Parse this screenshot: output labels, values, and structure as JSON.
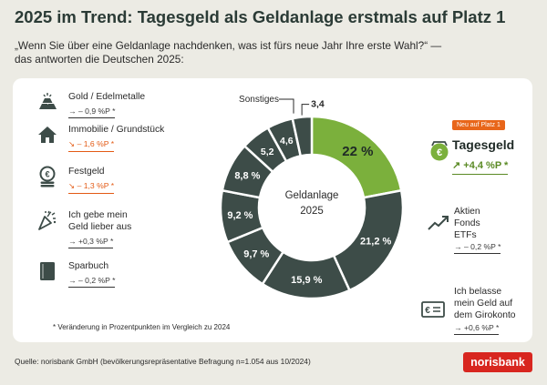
{
  "title": "2025 im Trend: Tagesgeld als Geldanlage erstmals auf Platz 1",
  "subtitle_line1": "„Wenn Sie über eine Geldanlage nachdenken, was ist fürs neue Jahr Ihre erste Wahl?“ —",
  "subtitle_line2": "das antworten die Deutschen 2025:",
  "center_label_line1": "Geldanlage",
  "center_label_line2": "2025",
  "colors": {
    "highlight": "#7bb03c",
    "slice": "#3d4c48",
    "negative": "#e35a14",
    "positive": "#5a8a24",
    "brand": "#d8261f"
  },
  "chart_data": {
    "type": "pie",
    "slices": [
      {
        "label": "Tagesgeld",
        "value": 22,
        "value_label": "22 %",
        "change": "↗ +4,4 %P *",
        "highlight": true
      },
      {
        "label": "Aktien Fonds ETFs",
        "value": 21.2,
        "value_label": "21,2 %",
        "change": "→ – 0,2 %P *"
      },
      {
        "label": "Ich belasse mein Geld auf dem Girokonto",
        "value": 15.9,
        "value_label": "15,9 %",
        "change": "→ +0,6 %P *"
      },
      {
        "label": "Sparbuch",
        "value": 9.7,
        "value_label": "9,7 %",
        "change": "→ – 0,2 %P *"
      },
      {
        "label": "Ich gebe mein Geld lieber aus",
        "value": 9.2,
        "value_label": "9,2 %",
        "change": "→ +0,3 %P *"
      },
      {
        "label": "Festgeld",
        "value": 8.8,
        "value_label": "8,8 %",
        "change": "↘ – 1,3 %P *"
      },
      {
        "label": "Immobilie / Grundstück",
        "value": 5.2,
        "value_label": "5,2",
        "change": "↘ – 1,6 %P *"
      },
      {
        "label": "Gold / Edelmetalle",
        "value": 4.6,
        "value_label": "4,6",
        "change": "→ – 0,9 %P *"
      },
      {
        "label": "Sonstiges",
        "value": 3.4,
        "value_label": "3,4"
      }
    ]
  },
  "legend_left": [
    {
      "icon": "gold-bars-icon",
      "label": "Gold / Edelmetalle",
      "change": "→ – 0,9 %P *",
      "trend": "flat"
    },
    {
      "icon": "house-icon",
      "label": "Immobilie / Grundstück",
      "change": "↘ – 1,6 %P *",
      "trend": "down"
    },
    {
      "icon": "coin-stack-icon",
      "label": "Festgeld",
      "change": "↘ – 1,3 %P *",
      "trend": "down"
    },
    {
      "icon": "party-popper-icon",
      "label": "Ich gebe mein Geld lieber aus",
      "label_line1": "Ich gebe mein",
      "label_line2": "Geld lieber aus",
      "change": "→ +0,3 %P *",
      "trend": "flat"
    },
    {
      "icon": "savings-book-icon",
      "label": "Sparbuch",
      "change": "→ – 0,2 %P *",
      "trend": "flat"
    }
  ],
  "sonstiges_label": "Sonstiges",
  "highlight": {
    "badge": "Neu auf Platz 1",
    "label": "Tagesgeld",
    "change": "↗ +4,4 %P *",
    "icon": "wallet-euro-icon"
  },
  "legend_right": [
    {
      "icon": "trend-up-icon",
      "line1": "Aktien",
      "line2": "Fonds",
      "line3": "ETFs",
      "change": "→ – 0,2 %P *"
    },
    {
      "icon": "banknote-euro-icon",
      "line1": "Ich belasse",
      "line2": "mein Geld auf",
      "line3": "dem Girokonto",
      "change": "→ +0,6 %P *"
    }
  ],
  "footnote": "* Veränderung in Prozentpunkten im Vergleich zu 2024",
  "source": "Quelle: norisbank GmbH (bevölkerungsrepräsentative Befragung n=1.054 aus 10/2024)",
  "brand": "norisbank"
}
